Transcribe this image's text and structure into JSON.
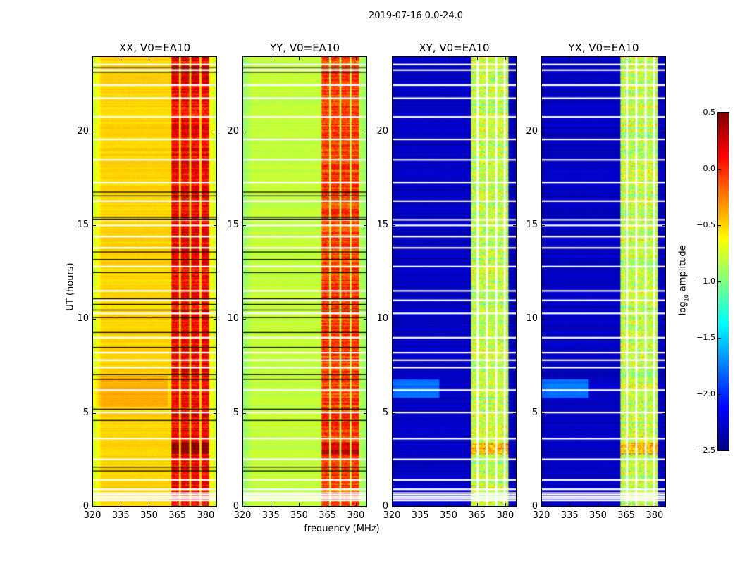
{
  "figure": {
    "suptitle": "2019-07-16 0.0-24.0"
  },
  "chart_data": {
    "type": "heatmap",
    "xlabel": "frequency (MHz)",
    "ylabel": "UT (hours)",
    "xlim": [
      320,
      386
    ],
    "ylim": [
      0,
      24
    ],
    "xticks": [
      "320",
      "335",
      "350",
      "365",
      "380"
    ],
    "xtick_values": [
      320,
      335,
      350,
      365,
      380
    ],
    "yticks": [
      "0",
      "5",
      "10",
      "15",
      "20"
    ],
    "ytick_values": [
      0,
      5,
      10,
      15,
      20
    ],
    "colormap": "jet",
    "colorbar": {
      "label_main": "log",
      "label_sub": "10",
      "label_rest": " amplitude",
      "range": [
        -2.5,
        0.5
      ],
      "ticks": [
        "0.5",
        "0.0",
        "−0.5",
        "−1.0",
        "−1.5",
        "−2.0",
        "−2.5"
      ],
      "tick_values": [
        0.5,
        0.0,
        -0.5,
        -1.0,
        -1.5,
        -2.0,
        -2.5
      ]
    },
    "panels": [
      {
        "title": "XX, V0=EA10",
        "base": -0.5,
        "edge": -0.8,
        "band": 0.15,
        "band_mhz": [
          362,
          382
        ],
        "flag_cols_mhz": [
          366.5,
          372,
          377.5
        ]
      },
      {
        "title": "YY, V0=EA10",
        "base": -0.8,
        "edge": -0.95,
        "band": -0.05,
        "band_mhz": [
          362,
          382
        ],
        "flag_cols_mhz": [
          366.5,
          372,
          377.5
        ]
      },
      {
        "title": "XY, V0=EA10",
        "base": -2.3,
        "edge": -2.35,
        "band": -0.8,
        "band_mhz": [
          362,
          382
        ],
        "flag_cols_mhz": [
          365.5,
          370.5,
          375.5,
          380
        ]
      },
      {
        "title": "YX, V0=EA10",
        "base": -2.3,
        "edge": -2.35,
        "band": -0.8,
        "band_mhz": [
          362,
          382
        ],
        "flag_cols_mhz": [
          365.5,
          370.5,
          375.5,
          380
        ]
      }
    ],
    "flagged_rows_ut": [
      0.3,
      0.4,
      0.5,
      0.6,
      0.7,
      0.9,
      1.4,
      2.5,
      3.6,
      5.0,
      6.2,
      7.4,
      7.8,
      8.2,
      9.0,
      10.3,
      11.0,
      11.5,
      12.8,
      13.8,
      14.4,
      15.0,
      15.3,
      16.3,
      17.3,
      18.5,
      19.6,
      20.8,
      21.8,
      22.5,
      23.3,
      23.6
    ],
    "black_rows_ut": [
      1.9,
      2.1,
      4.6,
      5.2,
      6.8,
      7.05,
      8.5,
      9.3,
      10.1,
      10.5,
      10.8,
      11.1,
      12.5,
      13.2,
      13.6,
      15.35,
      15.45,
      16.6,
      16.8,
      23.2,
      23.45
    ]
  }
}
